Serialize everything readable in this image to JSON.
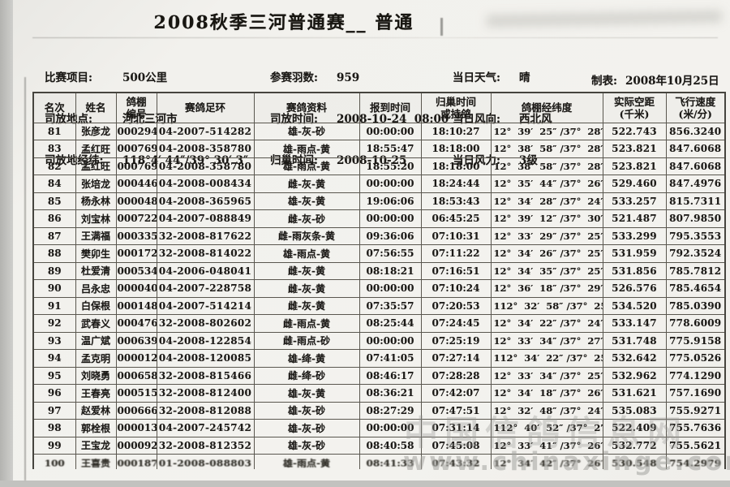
{
  "title": "2008秋季三河普通赛__ 普通",
  "info": {
    "left": [
      {
        "label": "比赛项目:",
        "value": "500公里"
      },
      {
        "label": "司放地点:",
        "value": "河北三河市"
      },
      {
        "label": "司放地经纬:",
        "value": "118°4′ 44″/39° 30′ 3″"
      }
    ],
    "middle": [
      {
        "label": "参赛羽数:",
        "value": "959"
      },
      {
        "label": "司放时间:",
        "value": "2008-10-24  08:00"
      },
      {
        "label": "归巢时间:",
        "value": "2008-10-25"
      }
    ],
    "right": [
      {
        "label": "当日天气:",
        "value": "晴"
      },
      {
        "label": "当日风向:",
        "value": "西北风"
      },
      {
        "label": "当日风力:",
        "value": "3级"
      }
    ],
    "made": {
      "label": "制表:",
      "value": "2008年10月25日"
    }
  },
  "table": {
    "headers": [
      "名次",
      "姓名",
      "鸽棚\n编号",
      "赛鸽足环",
      "赛鸽资料",
      "报到时间",
      "归巢时间\n或持鸽",
      "鸽棚经纬度",
      "实际空距\n(千米)",
      "飞行速度\n(米/分)"
    ],
    "col_keys": [
      "rank",
      "name",
      "loft-no",
      "ring",
      "pigeon-info",
      "report-time",
      "return-time",
      "coordinates",
      "distance-km",
      "speed-m-min"
    ],
    "rows": [
      [
        "81",
        "张彦龙",
        "000294",
        "04-2007-514282",
        "雄-灰-砂",
        "00:00:00",
        "18:10:27",
        "12°  39′  25″ /37°  28′  57″",
        "522.743",
        "856.3240"
      ],
      [
        "83",
        "孟红旺",
        "000769",
        "04-2008-358780",
        "雄-雨点-黄",
        "18:55:47",
        "18:18:00",
        "12°  38′  58″ /37°  28′  22″",
        "523.821",
        "847.6068"
      ],
      [
        "82",
        "孟红旺",
        "000769",
        "04-2008-358780",
        "雄-雨点-黄",
        "18:55:20",
        "18:18:00",
        "12°  38′  58″ /37°  28′  22″",
        "523.821",
        "847.6068"
      ],
      [
        "84",
        "张培龙",
        "000446",
        "04-2008-008434",
        "雌-灰-黄",
        "00:00:00",
        "18:24:44",
        "12°  35′  44″ /37°  26′  41″",
        "529.460",
        "847.4976"
      ],
      [
        "85",
        "杨永林",
        "000048",
        "04-2008-365965",
        "雄-灰-黄",
        "19:06:06",
        "18:53:43",
        "12°  34′  28″ /37°  24′  11″",
        "533.257",
        "815.7311"
      ],
      [
        "86",
        "刘宝林",
        "000722",
        "04-2007-088849",
        "雌-灰-砂",
        "00:00:00",
        "06:45:25",
        "12°  39′  12″ /37°  30′  47″",
        "521.487",
        "807.9850"
      ],
      [
        "87",
        "王满福",
        "000335",
        "32-2008-817622",
        "雌-雨灰条-黄",
        "09:36:06",
        "07:10:31",
        "12°  33′  29″ /37°  25′  39″",
        "533.299",
        "795.3553"
      ],
      [
        "88",
        "樊卯生",
        "000172",
        "32-2008-814022",
        "雄-雨点-黄",
        "07:56:55",
        "07:11:22",
        "12°  34′  26″ /37°  25′  45″",
        "531.959",
        "792.3524"
      ],
      [
        "89",
        "杜爱清",
        "000534",
        "04-2006-048041",
        "雌-灰-黄",
        "08:18:21",
        "07:16:51",
        "12°  34′  35″ /37°  25′  39″",
        "531.856",
        "785.7812"
      ],
      [
        "90",
        "吕永忠",
        "000040",
        "04-2007-228758",
        "雌-灰-黄",
        "00:00:00",
        "07:10:24",
        "12°  36′  18″ /37°  29′  15″",
        "526.576",
        "785.4654"
      ],
      [
        "91",
        "白保根",
        "000148",
        "04-2007-514214",
        "雌-灰-黄",
        "07:35:57",
        "07:20:53",
        "112°  32′  58″ /37°  25′  0″",
        "534.520",
        "785.0390"
      ],
      [
        "92",
        "武春义",
        "000476",
        "32-2008-802602",
        "雌-雨点-黄",
        "08:25:44",
        "07:24:45",
        "12°  34′  22″ /37°  24′  28″",
        "533.147",
        "778.6009"
      ],
      [
        "93",
        "温广斌",
        "000639",
        "04-2008-122854",
        "雌-雨点-砂",
        "00:00:00",
        "07:25:19",
        "12°  33′  34″ /37°  27′  22″",
        "531.748",
        "775.9158"
      ],
      [
        "94",
        "孟克明",
        "000012",
        "04-2008-120085",
        "雄-绛-黄",
        "07:41:05",
        "07:27:14",
        "112°  34′  22″ /37°  25′  4″",
        "532.642",
        "775.0526"
      ],
      [
        "95",
        "刘晓勇",
        "000658",
        "32-2008-815466",
        "雌-绛-砂",
        "08:46:17",
        "07:28:28",
        "12°  33′  34″ /37°  25′  55″",
        "532.962",
        "774.1290"
      ],
      [
        "96",
        "王春亮",
        "000515",
        "32-2008-812400",
        "雄-灰-黄",
        "08:36:21",
        "07:42:07",
        "12°  34′  18″ /37°  26′  22″",
        "531.621",
        "757.1690"
      ],
      [
        "97",
        "赵爱林",
        "000666",
        "32-2008-812088",
        "雄-灰-砂",
        "08:27:29",
        "07:47:51",
        "12°  32′  48″ /37°  24′  36″",
        "535.083",
        "755.9271"
      ],
      [
        "98",
        "郭栓根",
        "000013",
        "04-2007-245742",
        "雄-灰-砂",
        "00:00:00",
        "07:31:14",
        "112°  40′  52″ /37°  27′  5″",
        "522.409",
        "755.7636"
      ],
      [
        "99",
        "王宝龙",
        "000092",
        "32-2008-812352",
        "雄-灰-砂",
        "08:40:58",
        "07:45:08",
        "12°  33′  41″ /37°  26′  58″",
        "532.772",
        "755.5621"
      ],
      [
        "100",
        "王喜贵",
        "000187",
        "01-2008-088803",
        "雄-雨点-黄",
        "08:41:33",
        "07:43:32",
        "12°  34′  42″ /37°  26′  50″",
        "530.548",
        "754.2979"
      ]
    ]
  },
  "watermark": {
    "cn": "中国信鸽信息网",
    "url": "www.chinaxinge.com"
  },
  "colors": {
    "paper": "#f2f1ed",
    "scan_edge": "#b3b3b0",
    "ink": "#1c1a17",
    "grid_line": "#5a574f",
    "watermark_gray": "#a3a39f"
  }
}
